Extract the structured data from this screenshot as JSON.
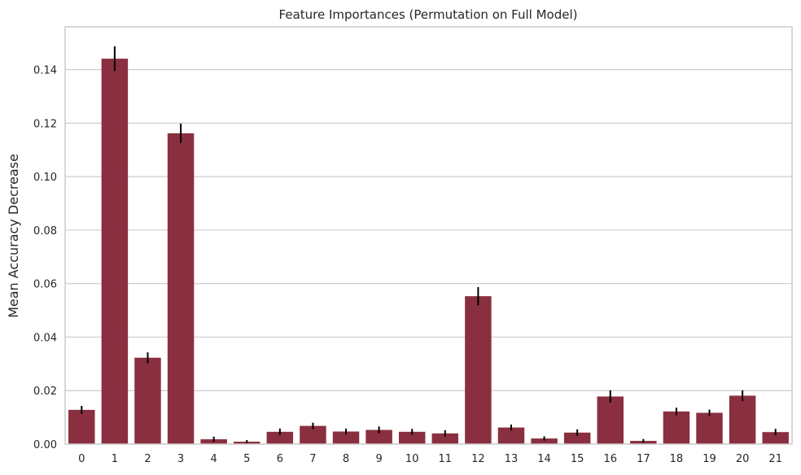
{
  "chart_data": {
    "type": "bar",
    "title": "Feature Importances (Permutation on Full Model)",
    "xlabel": "",
    "ylabel": "Mean Accuracy Decrease",
    "categories": [
      "0",
      "1",
      "2",
      "3",
      "4",
      "5",
      "6",
      "7",
      "8",
      "9",
      "10",
      "11",
      "12",
      "13",
      "14",
      "15",
      "16",
      "17",
      "18",
      "19",
      "20",
      "21"
    ],
    "values": [
      0.0128,
      0.1441,
      0.0323,
      0.1162,
      0.0018,
      0.0009,
      0.0046,
      0.0068,
      0.0047,
      0.0053,
      0.0046,
      0.004,
      0.0553,
      0.0062,
      0.0021,
      0.0043,
      0.0178,
      0.0012,
      0.0122,
      0.0117,
      0.0181,
      0.0045
    ],
    "errors": [
      0.0015,
      0.0046,
      0.002,
      0.0036,
      0.001,
      0.0006,
      0.0012,
      0.0012,
      0.0011,
      0.0013,
      0.0011,
      0.0012,
      0.0034,
      0.0011,
      0.0008,
      0.0012,
      0.0023,
      0.0007,
      0.0014,
      0.0012,
      0.002,
      0.0012
    ],
    "ylim": [
      0,
      0.156
    ],
    "yticks": [
      "0.00",
      "0.02",
      "0.04",
      "0.06",
      "0.08",
      "0.10",
      "0.12",
      "0.14"
    ],
    "grid": "horizontal",
    "bar_color": "#8a2f3f",
    "error_color": "#000000",
    "grid_color": "#cccccc",
    "spine_color": "#cccccc"
  }
}
